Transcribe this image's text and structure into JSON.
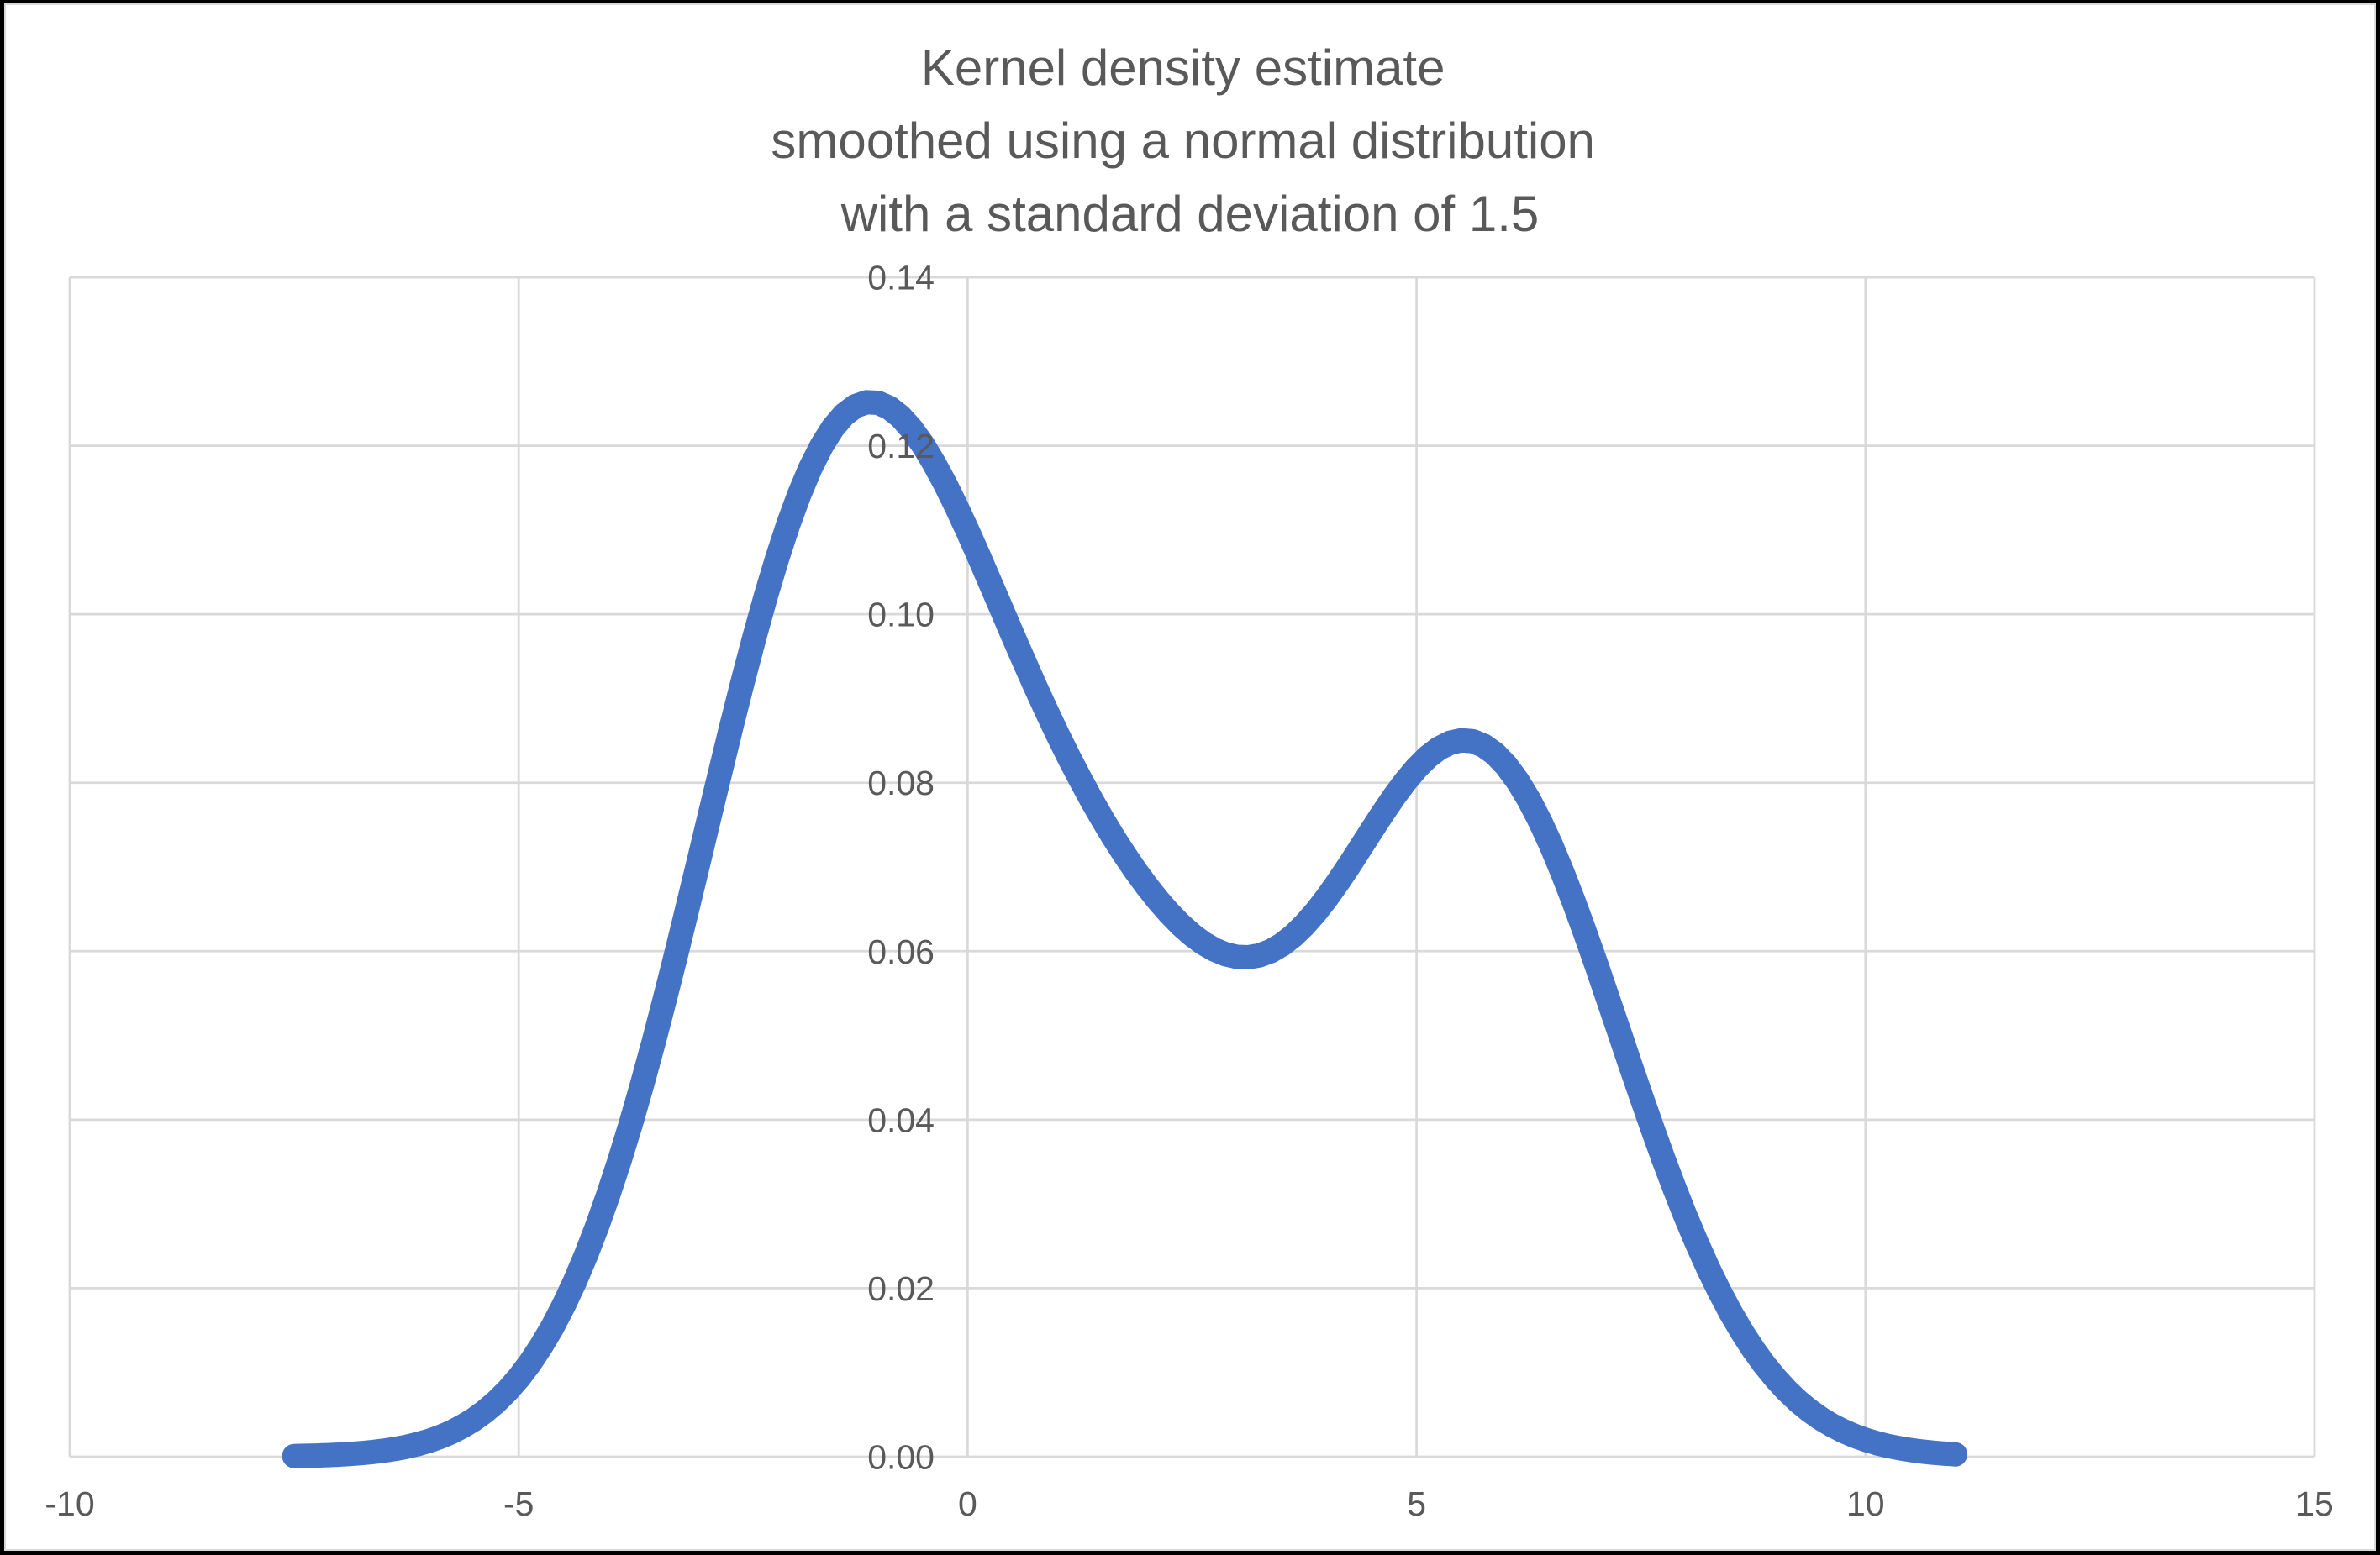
{
  "frame": {
    "outer_border_color": "#000000",
    "chart_area_border_color": "#D9D9D9",
    "chart_background": "#FFFFFF"
  },
  "chart_data": {
    "type": "line",
    "title": "Kernel density estimate smoothed using a normal distribution with a standard deviation of 1.5",
    "title_lines": [
      "Kernel density estimate",
      "smoothed using a normal distribution",
      "with a standard deviation of 1.5"
    ],
    "title_color": "#595959",
    "xlabel": "",
    "ylabel": "",
    "xlim": [
      -10,
      15
    ],
    "ylim": [
      0,
      0.14
    ],
    "x_ticks": [
      -10,
      -5,
      0,
      5,
      10,
      15
    ],
    "x_tick_labels": [
      "-10",
      "-5",
      "0",
      "5",
      "10",
      "15"
    ],
    "y_ticks": [
      0,
      0.02,
      0.04,
      0.06,
      0.08,
      0.1,
      0.12,
      0.14
    ],
    "y_tick_labels": [
      "0.00",
      "0.02",
      "0.04",
      "0.06",
      "0.08",
      "0.10",
      "0.12",
      "0.14"
    ],
    "tick_label_color": "#595959",
    "grid": true,
    "gridline_color": "#D9D9D9",
    "legend_position": "none",
    "smoothing": {
      "kernel": "normal distribution",
      "standard_deviation": 1.5
    },
    "series": [
      {
        "name": "Kernel density estimate",
        "color": "#4472C4",
        "x": [
          -7.5,
          -7.375,
          -7.25,
          -7.125,
          -7.0,
          -6.875,
          -6.75,
          -6.625,
          -6.5,
          -6.375,
          -6.25,
          -6.125,
          -6.0,
          -5.875,
          -5.75,
          -5.625,
          -5.5,
          -5.375,
          -5.25,
          -5.125,
          -5.0,
          -4.875,
          -4.75,
          -4.625,
          -4.5,
          -4.375,
          -4.25,
          -4.125,
          -4.0,
          -3.875,
          -3.75,
          -3.625,
          -3.5,
          -3.375,
          -3.25,
          -3.125,
          -3.0,
          -2.875,
          -2.75,
          -2.625,
          -2.5,
          -2.375,
          -2.25,
          -2.125,
          -2.0,
          -1.875,
          -1.75,
          -1.625,
          -1.5,
          -1.375,
          -1.25,
          -1.125,
          -1.0,
          -0.875,
          -0.75,
          -0.625,
          -0.5,
          -0.375,
          -0.25,
          -0.125,
          0.0,
          0.125,
          0.25,
          0.375,
          0.5,
          0.625,
          0.75,
          0.875,
          1.0,
          1.125,
          1.25,
          1.375,
          1.5,
          1.625,
          1.75,
          1.875,
          2.0,
          2.125,
          2.25,
          2.375,
          2.5,
          2.625,
          2.75,
          2.875,
          3.0,
          3.125,
          3.25,
          3.375,
          3.5,
          3.625,
          3.75,
          3.875,
          4.0,
          4.125,
          4.25,
          4.375,
          4.5,
          4.625,
          4.75,
          4.875,
          5.0,
          5.125,
          5.25,
          5.375,
          5.5,
          5.625,
          5.75,
          5.875,
          6.0,
          6.125,
          6.25,
          6.375,
          6.5,
          6.625,
          6.75,
          6.875,
          7.0,
          7.125,
          7.25,
          7.375,
          7.5,
          7.625,
          7.75,
          7.875,
          8.0,
          8.125,
          8.25,
          8.375,
          8.5,
          8.625,
          8.75,
          8.875,
          9.0,
          9.125,
          9.25,
          9.375,
          9.5,
          9.625,
          9.75,
          9.875,
          10.0,
          10.125,
          10.25,
          10.375,
          10.5,
          10.625,
          10.75,
          10.875,
          11.0
        ],
        "y": [
          7.7e-05,
          0.000105,
          0.00014,
          0.000188,
          0.000249,
          0.000328,
          0.000429,
          0.000558,
          0.00072,
          0.000924,
          0.001178,
          0.001493,
          0.001878,
          0.002348,
          0.002916,
          0.003599,
          0.004413,
          0.005377,
          0.006509,
          0.007829,
          0.009358,
          0.011116,
          0.013121,
          0.015391,
          0.017941,
          0.020786,
          0.023933,
          0.027389,
          0.031153,
          0.035221,
          0.039581,
          0.044217,
          0.049102,
          0.054207,
          0.059493,
          0.064917,
          0.070429,
          0.075973,
          0.081492,
          0.086923,
          0.092203,
          0.09727,
          0.102061,
          0.106519,
          0.110588,
          0.11422,
          0.117375,
          0.120019,
          0.122129,
          0.12369,
          0.124699,
          0.125162,
          0.125095,
          0.124523,
          0.123479,
          0.122004,
          0.120143,
          0.117947,
          0.115469,
          0.112763,
          0.109882,
          0.106878,
          0.103798,
          0.100685,
          0.09758,
          0.094513,
          0.091513,
          0.088599,
          0.085787,
          0.083087,
          0.080507,
          0.07805,
          0.075718,
          0.073512,
          0.071434,
          0.069485,
          0.06767,
          0.065997,
          0.064475,
          0.063117,
          0.061936,
          0.060949,
          0.060175,
          0.059629,
          0.059328,
          0.059285,
          0.05951,
          0.060009,
          0.06078,
          0.061816,
          0.063102,
          0.064617,
          0.06633,
          0.068206,
          0.070201,
          0.072267,
          0.07435,
          0.076396,
          0.078345,
          0.080142,
          0.08173,
          0.083058,
          0.084079,
          0.084751,
          0.085042,
          0.084925,
          0.084387,
          0.083418,
          0.082023,
          0.080212,
          0.078006,
          0.075433,
          0.072528,
          0.069332,
          0.065889,
          0.062249,
          0.058461,
          0.054575,
          0.050641,
          0.046706,
          0.042815,
          0.039008,
          0.035321,
          0.031786,
          0.028427,
          0.025265,
          0.022314,
          0.019585,
          0.017081,
          0.014802,
          0.012747,
          0.010907,
          0.009273,
          0.007833,
          0.006574,
          0.005482,
          0.004542,
          0.003738,
          0.003057,
          0.002484,
          0.002004,
          0.001607,
          0.00128,
          0.001013,
          0.000796,
          0.000622,
          0.000482,
          0.000371,
          0.000284
        ]
      }
    ]
  }
}
